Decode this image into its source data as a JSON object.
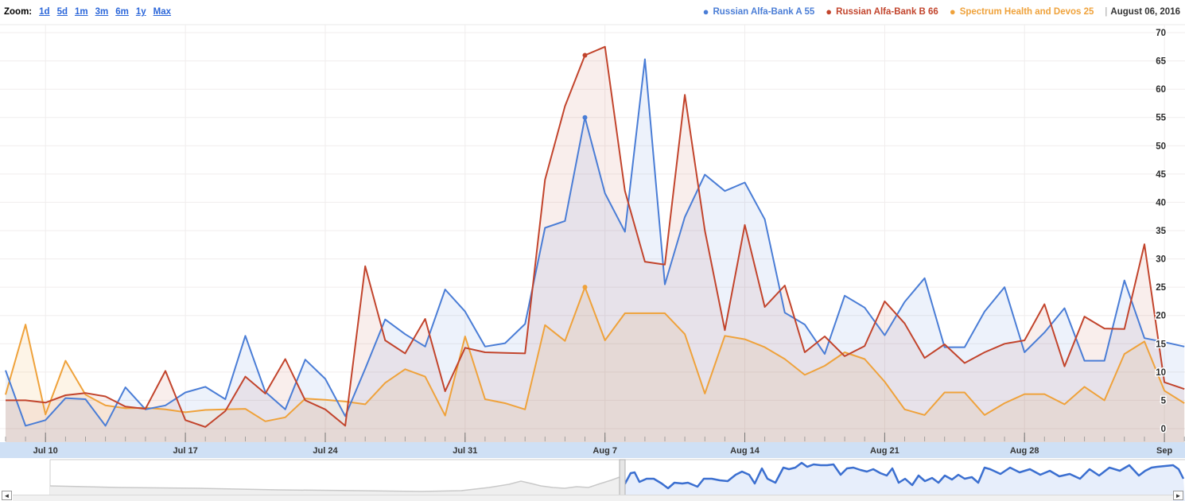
{
  "header": {
    "zoom": {
      "label": "Zoom:",
      "options": [
        "1d",
        "5d",
        "1m",
        "3m",
        "6m",
        "1y",
        "Max"
      ]
    },
    "legend": {
      "date": "August 06, 2016",
      "separator": "|",
      "bullet": "●"
    }
  },
  "chart_data": {
    "type": "line",
    "title": "",
    "xlabel": "",
    "ylabel": "",
    "ylim": [
      0,
      70
    ],
    "yticks": [
      0,
      5,
      10,
      15,
      20,
      25,
      30,
      35,
      40,
      45,
      50,
      55,
      60,
      65,
      70
    ],
    "grid": true,
    "legend_position": "top-right",
    "marked_date": "Aug 6",
    "marked_index": 29,
    "x": [
      "Jul 8",
      "Jul 9",
      "Jul 10",
      "Jul 11",
      "Jul 12",
      "Jul 13",
      "Jul 14",
      "Jul 15",
      "Jul 16",
      "Jul 17",
      "Jul 18",
      "Jul 19",
      "Jul 20",
      "Jul 21",
      "Jul 22",
      "Jul 23",
      "Jul 24",
      "Jul 25",
      "Jul 26",
      "Jul 27",
      "Jul 28",
      "Jul 29",
      "Jul 30",
      "Jul 31",
      "Aug 1",
      "Aug 2",
      "Aug 3",
      "Aug 4",
      "Aug 5",
      "Aug 6",
      "Aug 7",
      "Aug 8",
      "Aug 9",
      "Aug 10",
      "Aug 11",
      "Aug 12",
      "Aug 13",
      "Aug 14",
      "Aug 15",
      "Aug 16",
      "Aug 17",
      "Aug 18",
      "Aug 19",
      "Aug 20",
      "Aug 21",
      "Aug 22",
      "Aug 23",
      "Aug 24",
      "Aug 25",
      "Aug 26",
      "Aug 27",
      "Aug 28",
      "Aug 29",
      "Aug 30",
      "Aug 31",
      "Sep 1",
      "Sep 2",
      "Sep 3",
      "Sep 4",
      "Sep 5"
    ],
    "xticks": [
      {
        "i": 2,
        "label": "Jul 10"
      },
      {
        "i": 9,
        "label": "Jul 17"
      },
      {
        "i": 16,
        "label": "Jul 24"
      },
      {
        "i": 23,
        "label": "Jul 31"
      },
      {
        "i": 30,
        "label": "Aug 7"
      },
      {
        "i": 37,
        "label": "Aug 14"
      },
      {
        "i": 44,
        "label": "Aug 21"
      },
      {
        "i": 51,
        "label": "Aug 28"
      },
      {
        "i": 58,
        "label": "Sep"
      }
    ],
    "series": [
      {
        "name": "Russian Alfa-Bank A",
        "value_on_date": 55,
        "color": "#4a7dd6",
        "fill": "rgba(74,125,214,0.10)",
        "values": [
          10.3,
          0.5,
          1.5,
          5.4,
          5.2,
          0.5,
          7.3,
          3.4,
          4.1,
          6.4,
          7.4,
          5.2,
          16.4,
          6.5,
          3.4,
          12.2,
          8.8,
          2.2,
          10.6,
          19.3,
          16.7,
          14.5,
          24.6,
          20.7,
          14.5,
          15.1,
          18.5,
          35.5,
          36.7,
          55,
          41.6,
          34.8,
          65.3,
          25.5,
          37.4,
          44.9,
          42,
          43.5,
          37,
          20.5,
          18.4,
          13.2,
          23.5,
          21.4,
          16.5,
          22.4,
          26.6,
          14.4,
          14.4,
          20.7,
          25,
          13.5,
          17,
          21.3,
          12,
          12,
          26.2,
          16,
          15.3,
          14.5
        ]
      },
      {
        "name": "Russian Alfa-Bank B",
        "value_on_date": 66,
        "color": "#c2442c",
        "fill": "rgba(194,68,44,0.09)",
        "values": [
          5,
          5,
          4.6,
          5.9,
          6.3,
          5.7,
          3.9,
          3.5,
          10.2,
          1.5,
          0.3,
          3.1,
          9.2,
          6.2,
          12.3,
          5,
          3.4,
          0.5,
          28.7,
          15.6,
          13.3,
          19.4,
          6.6,
          14.3,
          13.5,
          13.4,
          13.3,
          44,
          57,
          66,
          67.5,
          42,
          29.5,
          29,
          59,
          35,
          17.4,
          36,
          21.5,
          25.3,
          13.5,
          16.3,
          12.8,
          14.6,
          22.5,
          18.6,
          12.5,
          14.9,
          11.6,
          13.5,
          15,
          15.6,
          22,
          11,
          19.8,
          17.7,
          17.6,
          32.6,
          8.2,
          7
        ]
      },
      {
        "name": "Spectrum Health and Devos",
        "value_on_date": 25,
        "color": "#efa23b",
        "fill": "rgba(239,162,59,0.12)",
        "values": [
          6,
          18.4,
          2.5,
          12,
          6,
          4.1,
          3.6,
          3.7,
          3.4,
          2.9,
          3.3,
          3.4,
          3.5,
          1.3,
          2,
          5.3,
          5.1,
          4.8,
          4.3,
          8.1,
          10.5,
          9.2,
          2.3,
          16.3,
          5.2,
          4.5,
          3.4,
          18.3,
          15.5,
          25,
          15.6,
          20.4,
          20.4,
          20.4,
          16.7,
          6.2,
          16.4,
          15.8,
          14.4,
          12.3,
          9.5,
          11.1,
          13.5,
          12.3,
          8.3,
          3.4,
          2.4,
          6.4,
          6.4,
          2.4,
          4.5,
          6.1,
          6.1,
          4.3,
          7.4,
          5,
          13.2,
          15.4,
          6.7,
          4.5
        ]
      }
    ],
    "colors": {
      "grid": "#f0eded",
      "top_border": "#e9e9e9",
      "axis_band": "#cfe0f5",
      "axis_label": "#333333",
      "ytick_label": "#2b2b2b",
      "tick_minor": "#a0a0a0",
      "tick_major": "#777777"
    }
  },
  "navigator": {
    "colors": {
      "border": "#cccccc",
      "gray_line": "#c9c9c9",
      "gray_fill": "#efefef",
      "blue_line": "#3b6fd0",
      "blue_fill": "#e7eefb",
      "handle_fill": "#e6e6e6",
      "handle_stroke": "#b0b0b0"
    },
    "history_line": [
      [
        63,
        611
      ],
      [
        150,
        613
      ],
      [
        250,
        614
      ],
      [
        350,
        616
      ],
      [
        450,
        617
      ],
      [
        530,
        618
      ],
      [
        580,
        617
      ],
      [
        615,
        613
      ],
      [
        640,
        609
      ],
      [
        655,
        605
      ],
      [
        668,
        608
      ],
      [
        680,
        611
      ],
      [
        695,
        613
      ],
      [
        710,
        614
      ],
      [
        725,
        612
      ],
      [
        740,
        613
      ],
      [
        755,
        608
      ],
      [
        768,
        604
      ],
      [
        779,
        600
      ]
    ],
    "window_line": [
      [
        783,
        597
      ],
      [
        786,
        608
      ],
      [
        793,
        595
      ],
      [
        798,
        594
      ],
      [
        804,
        606
      ],
      [
        813,
        602
      ],
      [
        822,
        602
      ],
      [
        832,
        608
      ],
      [
        840,
        614
      ],
      [
        848,
        607
      ],
      [
        858,
        608
      ],
      [
        865,
        607
      ],
      [
        877,
        612
      ],
      [
        885,
        602
      ],
      [
        895,
        602
      ],
      [
        905,
        604
      ],
      [
        915,
        605
      ],
      [
        925,
        597
      ],
      [
        933,
        593
      ],
      [
        942,
        597
      ],
      [
        949,
        608
      ],
      [
        958,
        589
      ],
      [
        965,
        602
      ],
      [
        975,
        607
      ],
      [
        985,
        588
      ],
      [
        992,
        590
      ],
      [
        1000,
        588
      ],
      [
        1008,
        582
      ],
      [
        1015,
        587
      ],
      [
        1023,
        584
      ],
      [
        1032,
        585
      ],
      [
        1040,
        585
      ],
      [
        1048,
        584
      ],
      [
        1057,
        597
      ],
      [
        1065,
        589
      ],
      [
        1073,
        588
      ],
      [
        1082,
        591
      ],
      [
        1090,
        593
      ],
      [
        1098,
        590
      ],
      [
        1107,
        595
      ],
      [
        1115,
        598
      ],
      [
        1122,
        589
      ],
      [
        1130,
        607
      ],
      [
        1138,
        602
      ],
      [
        1147,
        610
      ],
      [
        1155,
        598
      ],
      [
        1163,
        605
      ],
      [
        1172,
        601
      ],
      [
        1180,
        607
      ],
      [
        1188,
        598
      ],
      [
        1197,
        603
      ],
      [
        1205,
        597
      ],
      [
        1213,
        602
      ],
      [
        1222,
        600
      ],
      [
        1230,
        607
      ],
      [
        1238,
        588
      ],
      [
        1245,
        590
      ],
      [
        1258,
        596
      ],
      [
        1270,
        588
      ],
      [
        1282,
        594
      ],
      [
        1295,
        590
      ],
      [
        1308,
        597
      ],
      [
        1320,
        592
      ],
      [
        1332,
        599
      ],
      [
        1345,
        596
      ],
      [
        1358,
        602
      ],
      [
        1370,
        590
      ],
      [
        1382,
        598
      ],
      [
        1395,
        588
      ],
      [
        1408,
        592
      ],
      [
        1420,
        585
      ],
      [
        1432,
        598
      ],
      [
        1440,
        592
      ],
      [
        1448,
        588
      ],
      [
        1455,
        587
      ],
      [
        1465,
        586
      ],
      [
        1475,
        585
      ],
      [
        1482,
        590
      ],
      [
        1488,
        602
      ]
    ]
  },
  "scrollbar": {
    "left_arrow": "◄",
    "right_arrow": "►"
  }
}
